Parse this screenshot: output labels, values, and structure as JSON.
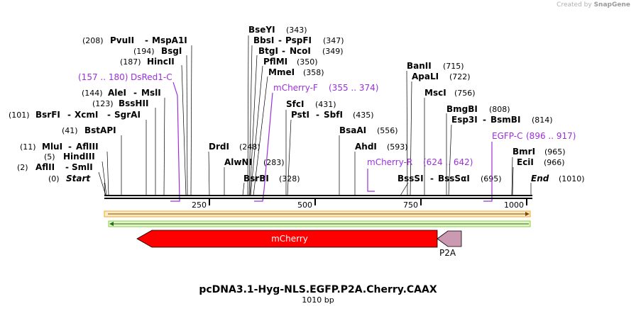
{
  "credit": {
    "prefix": "Created by",
    "logo": "SnapGene"
  },
  "title": "pcDNA3.1-Hyg-NLS.EGFP.P2A.Cherry.CAAX",
  "length_label": "1010 bp",
  "map_ticks": [
    "250",
    "500",
    "750",
    "1000"
  ],
  "sites": [
    {
      "name": "PvuII",
      "name2": "MspA1I",
      "pos": "(208)"
    },
    {
      "name": "BsgI",
      "pos": "(194)"
    },
    {
      "name": "HincII",
      "pos": "(187)"
    },
    {
      "name": "AleI",
      "name2": "MslI",
      "pos": "(144)"
    },
    {
      "name": "BssHII",
      "pos": "(123)"
    },
    {
      "name": "BsrFI",
      "name2": "XcmI",
      "name3": "SgrAI",
      "pos": "(101)"
    },
    {
      "name": "BstAPI",
      "pos": "(41)"
    },
    {
      "name": "MluI",
      "name2": "AflIII",
      "pos": "(11)"
    },
    {
      "name": "HindIII",
      "pos": "(5)"
    },
    {
      "name": "AflII",
      "name2": "SmlI",
      "pos": "(2)"
    },
    {
      "name": "Start",
      "pos": "(0)"
    },
    {
      "name": "BseYI",
      "pos": "(343)"
    },
    {
      "name": "BbsI",
      "name2": "PspFI",
      "pos": "(347)"
    },
    {
      "name": "BtgI",
      "name2": "NcoI",
      "pos": "(349)"
    },
    {
      "name": "PflMI",
      "pos": "(350)"
    },
    {
      "name": "MmeI",
      "pos": "(358)"
    },
    {
      "name": "SfcI",
      "pos": "(431)"
    },
    {
      "name": "PstI",
      "name2": "SbfI",
      "pos": "(435)"
    },
    {
      "name": "DrdI",
      "pos": "(248)"
    },
    {
      "name": "AlwNI",
      "pos": "(283)"
    },
    {
      "name": "BsrBI",
      "pos": "(328)"
    },
    {
      "name": "BsaAI",
      "pos": "(556)"
    },
    {
      "name": "AhdI",
      "pos": "(593)"
    },
    {
      "name": "BanII",
      "pos": "(715)"
    },
    {
      "name": "ApaLI",
      "pos": "(722)"
    },
    {
      "name": "MscI",
      "pos": "(756)"
    },
    {
      "name": "BmgBI",
      "pos": "(808)"
    },
    {
      "name": "Esp3I",
      "name2": "BsmBI",
      "pos": "(814)"
    },
    {
      "name": "BssSI",
      "name2": "BssSαI",
      "pos": "(695)"
    },
    {
      "name": "BmrI",
      "pos": "(965)"
    },
    {
      "name": "EciI",
      "pos": "(966)"
    },
    {
      "name": "End",
      "pos": "(1010)"
    }
  ],
  "primers": [
    {
      "name": "DsRed1-C",
      "range": "(157 .. 180)"
    },
    {
      "name": "mCherry-F",
      "range": "(355 .. 374)"
    },
    {
      "name": "mCherry-R",
      "range": "(624 .. 642)"
    },
    {
      "name": "EGFP-C",
      "range": "(896 .. 917)"
    }
  ],
  "features": [
    {
      "name": "mCherry",
      "color": "#ff0000"
    },
    {
      "name": "P2A",
      "color": "#cc99b2"
    }
  ],
  "colors": {
    "primer": "#9b30d9",
    "backbone": "#000000",
    "orange_bar": "#f5a623",
    "green_bar": "#2e9e2e"
  }
}
